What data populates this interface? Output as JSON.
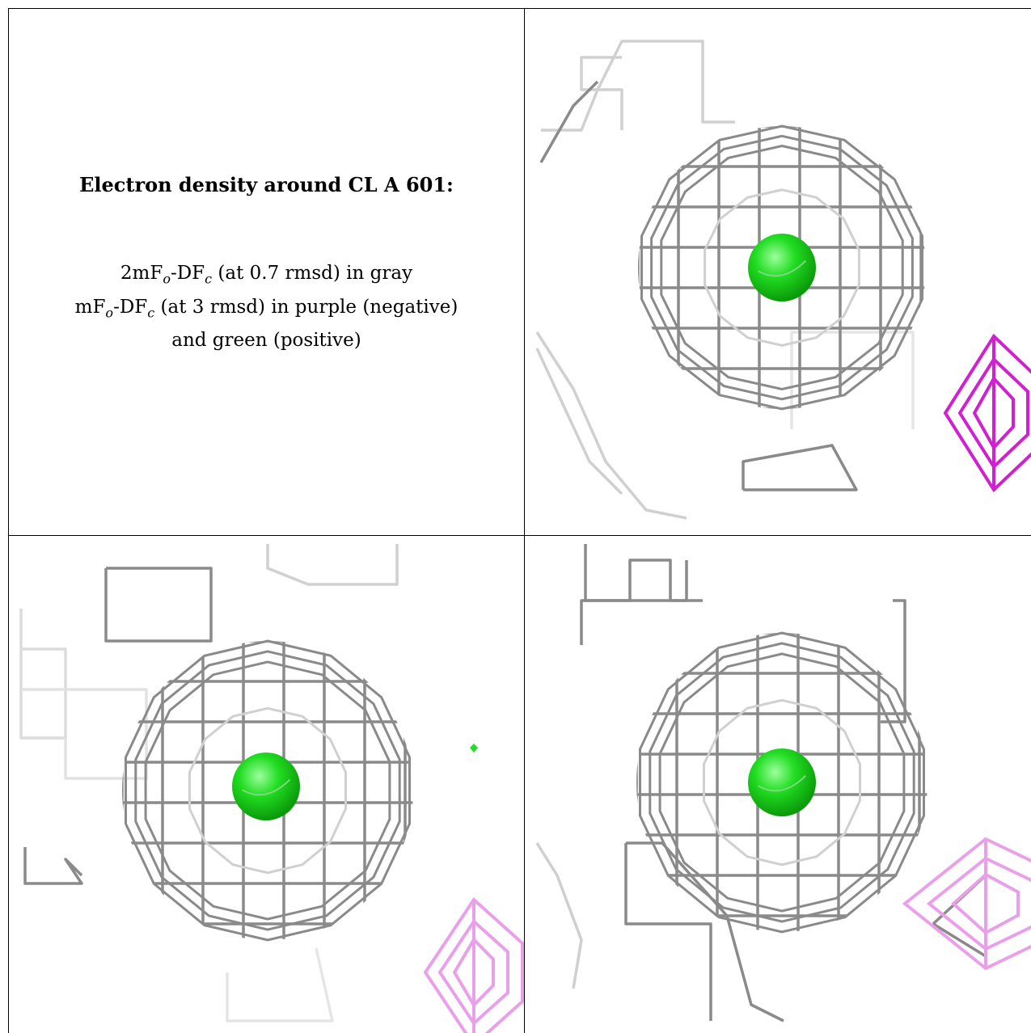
{
  "caption": {
    "title": "Electron density around CL A 601:",
    "line1": {
      "a": "2mF",
      "b": "o",
      "c": "-DF",
      "d": "c",
      "e": " (at 0.7 rmsd) in gray"
    },
    "line2": {
      "a": "mF",
      "b": "o",
      "c": "-DF",
      "d": "c",
      "e": " (at 3 rmsd) in purple (negative)"
    },
    "line3": "and green (positive)"
  },
  "colors": {
    "mesh_gray": "#8a8a8a",
    "mesh_light": "#d0d0d0",
    "negative_purple": "#d020d0",
    "negative_light": "#e9a0e9",
    "positive_green": "#22dd22",
    "border": "#000000"
  },
  "views": [
    {
      "name": "view-top-right",
      "negative_blob": "strong"
    },
    {
      "name": "view-bottom-left",
      "negative_blob": "light",
      "positive_dot": true
    },
    {
      "name": "view-bottom-right",
      "negative_blob": "light"
    }
  ]
}
